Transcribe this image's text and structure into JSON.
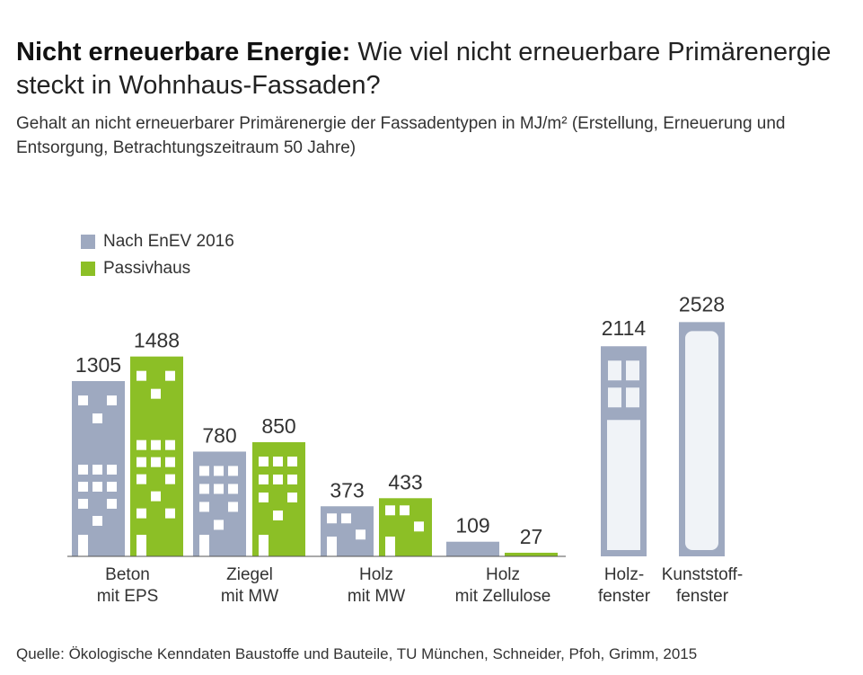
{
  "header": {
    "title_bold": "Nicht erneuerbare Energie:",
    "title_rest": "Wie viel nicht erneuerbare Primärenergie steckt in Wohnhaus-Fassaden?",
    "subtitle": "Gehalt an nicht erneuerbarer Primärenergie der Fassadentypen in MJ/m² (Erstellung, Erneuerung und Entsorgung, Betrachtungszeitraum 50 Jahre)"
  },
  "legend": {
    "items": [
      {
        "label": "Nach EnEV 2016",
        "color": "#9ea9c0"
      },
      {
        "label": "Passivhaus",
        "color": "#8cbf26"
      }
    ]
  },
  "source": "Quelle: Ökologische Kenndaten Baustoffe und Bauteile, TU München, Schneider, Pfoh, Grimm, 2015",
  "chart_data": {
    "type": "bar",
    "title": "Nicht erneuerbare Energie: Wie viel nicht erneuerbare Primärenergie steckt in Wohnhaus-Fassaden?",
    "ylabel": "MJ/m²",
    "ylim": [
      0,
      2600
    ],
    "categories": [
      {
        "lines": [
          "Beton",
          "mit EPS"
        ]
      },
      {
        "lines": [
          "Ziegel",
          "mit MW"
        ]
      },
      {
        "lines": [
          "Holz",
          "mit MW"
        ]
      },
      {
        "lines": [
          "Holz",
          "mit Zellulose"
        ]
      },
      {
        "lines": [
          "Holz-",
          "fenster"
        ]
      },
      {
        "lines": [
          "Kunststoff-",
          "fenster"
        ]
      }
    ],
    "series": [
      {
        "name": "Nach EnEV 2016",
        "color": "#9ea9c0",
        "values": [
          1305,
          780,
          373,
          109,
          2114,
          2528
        ]
      },
      {
        "name": "Passivhaus",
        "color": "#8cbf26",
        "values": [
          1488,
          850,
          433,
          27,
          null,
          null
        ]
      }
    ]
  }
}
